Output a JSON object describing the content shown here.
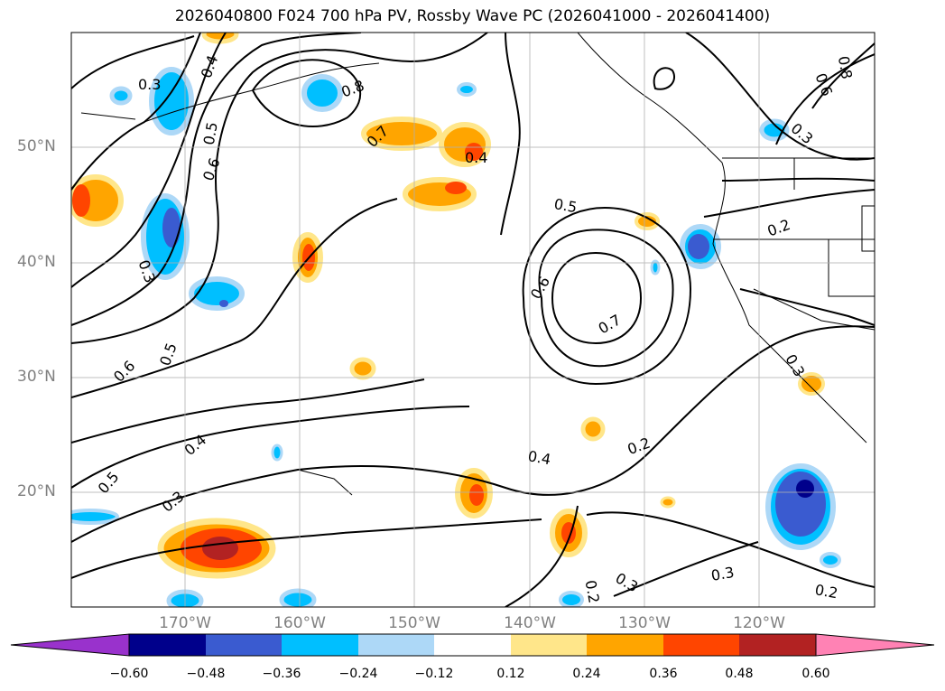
{
  "title": "2026040800 F024 700 hPa PV, Rossby Wave PC (2026041000 - 2026041400)",
  "axes": {
    "lat_labels": [
      "50°N",
      "40°N",
      "30°N",
      "20°N"
    ],
    "lon_labels": [
      "170°W",
      "160°W",
      "150°W",
      "140°W",
      "130°W",
      "120°W"
    ]
  },
  "colorbar": {
    "ticks": [
      "−0.60",
      "−0.48",
      "−0.36",
      "−0.24",
      "−0.12",
      "0.12",
      "0.24",
      "0.36",
      "0.48",
      "0.60"
    ],
    "colors": [
      "#9932cc",
      "#00008b",
      "#3a5bd0",
      "#00bfff",
      "#add8f7",
      "#ffffff",
      "#ffe68a",
      "#ffa500",
      "#ff4500",
      "#b22222",
      "#ff82b4"
    ]
  },
  "contour_labels": [
    "0.3",
    "0.4",
    "0.5",
    "0.6",
    "0.8",
    "0.7",
    "0.4",
    "0.5",
    "0.2",
    "0.6",
    "0.7",
    "0.3",
    "0.5",
    "0.6",
    "0.4",
    "0.5",
    "0.3",
    "0.4",
    "0.2",
    "0.3",
    "0.3",
    "0.2",
    "0.3",
    "0.2",
    "0.8",
    "0.6",
    "0.3"
  ]
}
